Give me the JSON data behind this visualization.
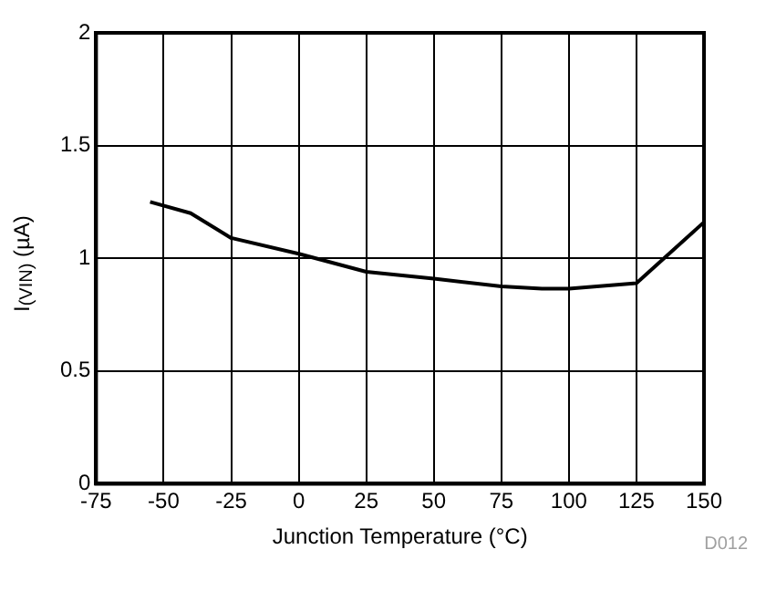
{
  "chart_data": {
    "type": "line",
    "xlabel": "Junction Temperature (°C)",
    "ylabel": "I$_{(VIN)}$ (µA)",
    "annotations": [
      "D012"
    ],
    "series": [
      {
        "color": "#000000",
        "x": [
          -55,
          -40,
          -25,
          0,
          25,
          50,
          75,
          90,
          100,
          125,
          150
        ],
        "values": [
          1.25,
          1.2,
          1.09,
          1.02,
          0.94,
          0.91,
          0.875,
          0.865,
          0.865,
          0.89,
          1.16
        ]
      }
    ],
    "xlim": [
      -75,
      150
    ],
    "xticks": [
      -75,
      -50,
      -25,
      0,
      25,
      50,
      75,
      100,
      125,
      150
    ],
    "ylim": [
      0,
      2
    ],
    "yticks": [
      0,
      0.5,
      1,
      1.5,
      2
    ],
    "grid": true,
    "legend": false,
    "marker": "none",
    "line_style": "solid"
  }
}
